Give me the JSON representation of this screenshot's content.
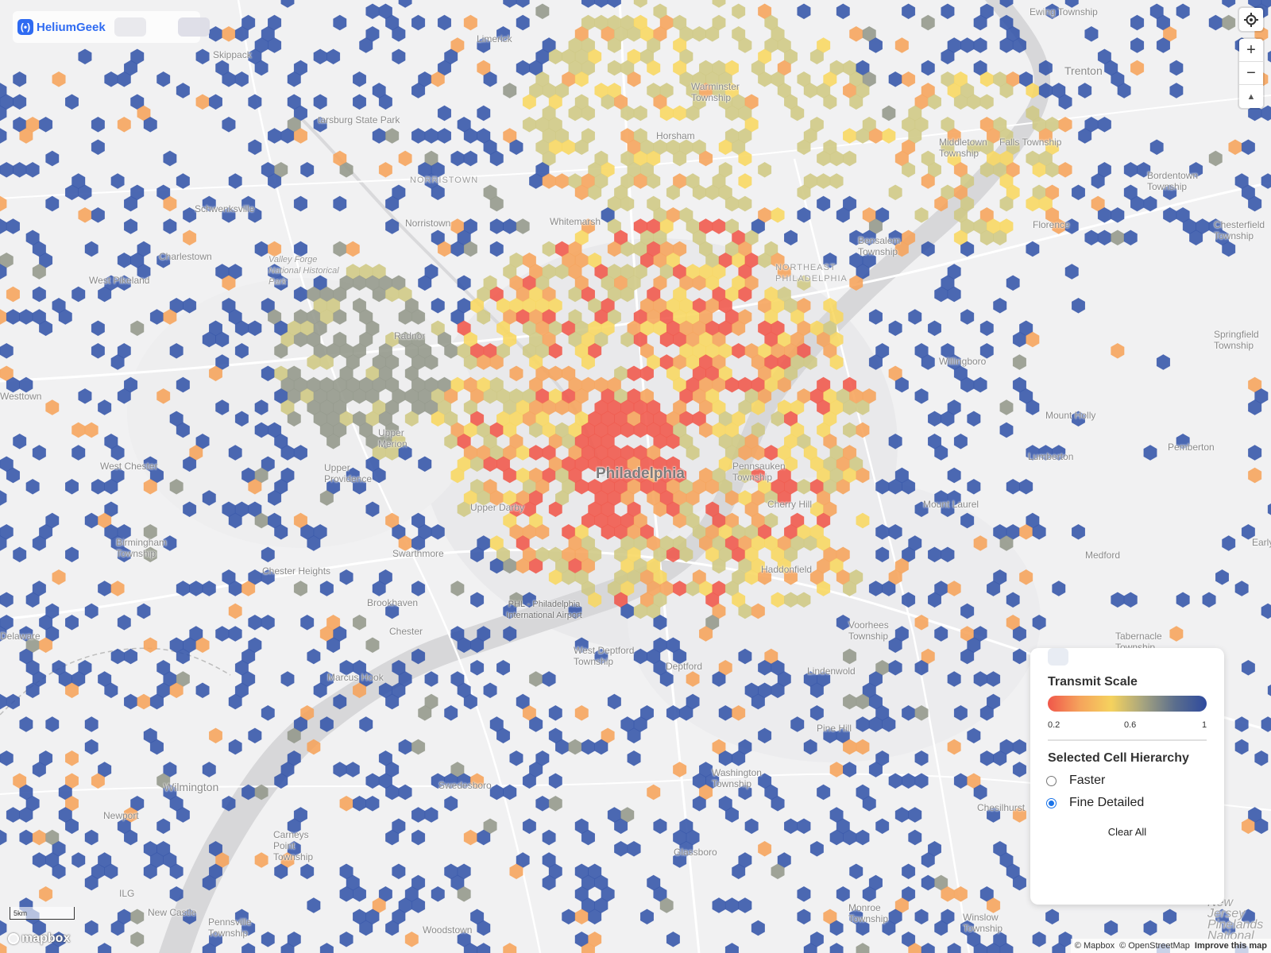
{
  "brand": {
    "name": "HeliumGeek",
    "logo_glyph": "(•)"
  },
  "controls": {
    "geolocate_icon": "crosshair-icon",
    "zoom_in": "+",
    "zoom_out": "−",
    "compass": "▲"
  },
  "legend": {
    "title": "Transmit Scale",
    "scale_min": "0.2",
    "scale_mid": "0.6",
    "scale_max": "1",
    "colors": [
      "#f0574a",
      "#f5a35c",
      "#f5d25e",
      "#a6a47f",
      "#5b6e8d",
      "#2e4a9e"
    ],
    "hierarchy_title": "Selected Cell Hierarchy",
    "options": [
      {
        "label": "Faster",
        "selected": false
      },
      {
        "label": "Fine Detailed",
        "selected": true
      }
    ],
    "clear_label": "Clear All"
  },
  "hex_colors": {
    "red": "#f0574a",
    "orange": "#f6a35a",
    "yellow": "#f8d760",
    "khaki": "#cfc883",
    "grey": "#93978a",
    "blue": "#3354a8"
  },
  "places": {
    "skippack": "Skippack",
    "limerick": "Limerick",
    "schwenksville": "Schwenksville",
    "tarsburg": "tarsburg State Park",
    "norristown_region": "NORRISTOWN",
    "norristown": "Norristown",
    "whitemarsh": "Whitemarsh",
    "horsham": "Horsham",
    "warminster": "Warminster Township",
    "middletown": "Middletown Township",
    "fallsington": "Falls Township",
    "trenton": "Trenton",
    "ewing": "Ewing Township",
    "bordentown": "Bordentown Township",
    "chesterfield": "Chesterfield Township",
    "bensalem": "Bensalem Township",
    "florence": "Florence",
    "northeast": "NORTHEAST PHILADELPHIA",
    "springfield": "Springfield Township",
    "willingboro": "Willingboro",
    "mount_holly": "Mount Holly",
    "pemberton": "Pemberton",
    "lumberton": "Lumberton",
    "mount_laurel": "Mount Laurel",
    "medford": "Medford",
    "philadelphia": "Philadelphia",
    "pennsauken": "Pennsauken Township",
    "cherry_hill": "Cherry Hill",
    "haddonfield": "Haddonfield",
    "voorhees": "Voorhees Township",
    "tabernacle": "Tabernacle Township",
    "charlestown": "Charlestown",
    "valley_forge": "Valley Forge National Historical Park",
    "west_pikeland": "West Pikeland",
    "radnor": "Radnor",
    "upper_merion": "Upper Merion",
    "upper_providence": "Upper Providence",
    "west_chester": "West Chester",
    "birmingham": "Birmingham Township",
    "chester_heights": "Chester Heights",
    "swarthmore": "Swarthmore",
    "upper_darby": "Upper Darby",
    "chester": "Chester",
    "brookhaven": "Brookhaven",
    "airport": "PHL - Philadelphia International Airport",
    "west_deptford": "West Deptford Township",
    "deptford": "Deptford",
    "gloucester": "Gloucester Township",
    "lindenwold": "Lindenwold",
    "pine_hill": "Pine Hill",
    "chesilhurst": "Chesilhurst",
    "washington": "Washington Township",
    "glassboro": "Glassboro",
    "swedesboro": "Swedesboro",
    "marcus_hook": "Marcus Hook",
    "claymont": "Claymont",
    "wilmington": "Wilmington",
    "newport": "Newport",
    "carneys_point": "Carneys Point Township",
    "new_castle": "New Castle",
    "ilg": "ILG",
    "pennsville": "Pennsville Township",
    "woodstown": "Woodstown",
    "monroe": "Monroe Township",
    "winslow": "Winslow Township",
    "new_jersey": "New Jersey Pinelands National",
    "westtown": "Westtown",
    "delaware": "Delaware",
    "early": "Early"
  },
  "scale_label": "5km",
  "mapbox_label": "mapbox",
  "attribution": {
    "mapbox": "© Mapbox",
    "osm": "© OpenStreetMap",
    "improve": "Improve this map"
  }
}
